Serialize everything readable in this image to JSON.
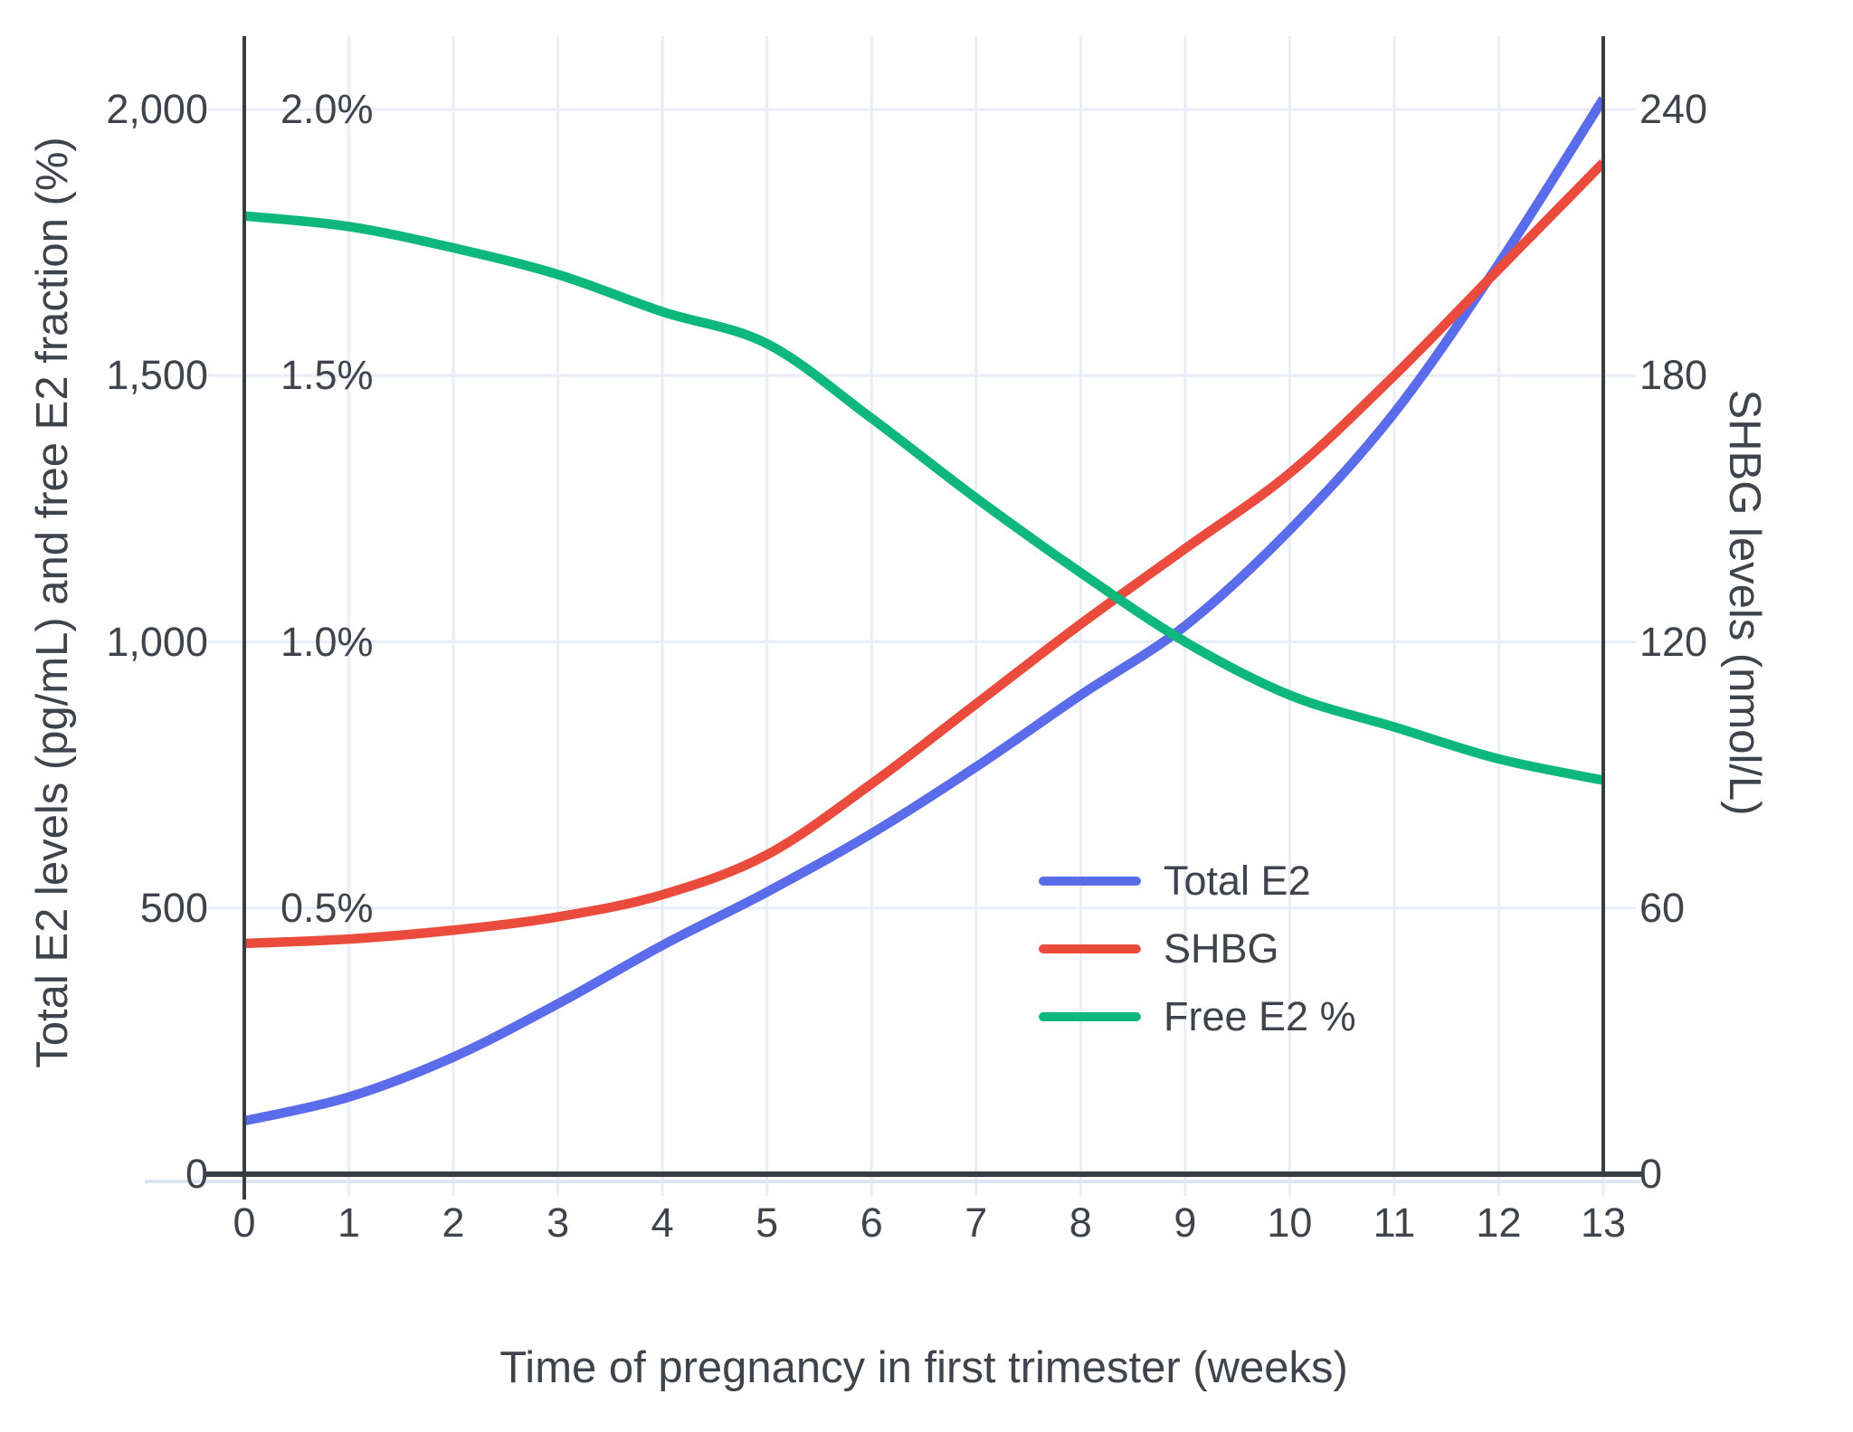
{
  "chart_data": {
    "type": "line",
    "title": "",
    "xlabel": "Time of pregnancy in first trimester (weeks)",
    "ylabel_left": "Total E2 levels (pg/mL) and free E2 fraction (%)",
    "ylabel_right": "SHBG levels (nmol/L)",
    "x": [
      0,
      1,
      2,
      3,
      4,
      5,
      6,
      7,
      8,
      9,
      10,
      11,
      12,
      13
    ],
    "x_tick_labels": [
      "0",
      "1",
      "2",
      "3",
      "4",
      "5",
      "6",
      "7",
      "8",
      "9",
      "10",
      "11",
      "12",
      "13"
    ],
    "series": [
      {
        "name": "Total E2",
        "axis": "left",
        "units": "pg/mL",
        "color": "#5b6ceb",
        "values": [
          100,
          145,
          220,
          320,
          430,
          530,
          640,
          765,
          900,
          1030,
          1210,
          1430,
          1710,
          2020
        ]
      },
      {
        "name": "SHBG",
        "axis": "right",
        "units": "nmol/L",
        "color": "#ea4b3d",
        "values": [
          52,
          53,
          55,
          58,
          63,
          72,
          88,
          106,
          124,
          141,
          158,
          180,
          204,
          228
        ]
      },
      {
        "name": "Free E2 %",
        "axis": "left_pct",
        "units": "%",
        "color": "#0eb87d",
        "values": [
          1.8,
          1.78,
          1.74,
          1.69,
          1.62,
          1.56,
          1.42,
          1.27,
          1.13,
          1.0,
          0.9,
          0.84,
          0.78,
          0.74
        ]
      }
    ],
    "left_axis": {
      "range": [
        0,
        2000
      ],
      "ticks": [
        {
          "value": 0,
          "label": "0"
        },
        {
          "value": 500,
          "label": "500"
        },
        {
          "value": 1000,
          "label": "1,000"
        },
        {
          "value": 1500,
          "label": "1,500"
        },
        {
          "value": 2000,
          "label": "2,000"
        }
      ]
    },
    "left_pct_labels": [
      {
        "value": 500,
        "label": "0.5%"
      },
      {
        "value": 1000,
        "label": "1.0%"
      },
      {
        "value": 1500,
        "label": "1.5%"
      },
      {
        "value": 2000,
        "label": "2.0%"
      }
    ],
    "right_axis": {
      "range": [
        0,
        240
      ],
      "ticks": [
        {
          "value": 0,
          "label": "0"
        },
        {
          "value": 60,
          "label": "60"
        },
        {
          "value": 120,
          "label": "120"
        },
        {
          "value": 180,
          "label": "180"
        },
        {
          "value": 240,
          "label": "240"
        }
      ]
    },
    "legend": {
      "position": "bottom-right",
      "entries": [
        "Total E2",
        "SHBG",
        "Free E2 %"
      ]
    },
    "grid": true,
    "colors": {
      "background": "#ffffff",
      "grid": "#e8edf8",
      "axis": "#383d44",
      "zeroline_under": "#dde6f3",
      "text": "#3f444c"
    }
  }
}
